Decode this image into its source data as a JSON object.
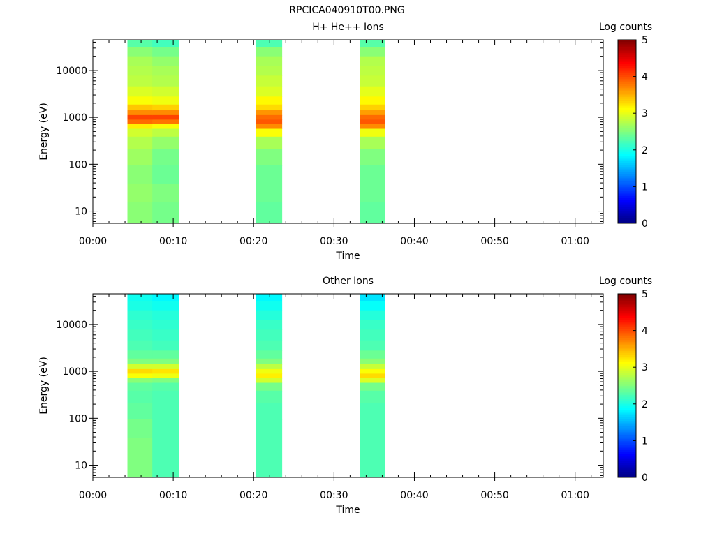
{
  "figure_title": "RPCICA040910T00.PNG",
  "chart_data": [
    {
      "type": "heatmap",
      "title": "H+ He++ Ions",
      "xlabel": "Time",
      "ylabel": "Energy (eV)",
      "y_scale": "log",
      "xlim_minutes": [
        0,
        63.5
      ],
      "ylim": [
        5.5,
        45000
      ],
      "x_tick_values": [
        0,
        10,
        20,
        30,
        40,
        50,
        60
      ],
      "x_tick_labels": [
        "00:00",
        "00:10",
        "00:20",
        "00:30",
        "00:40",
        "00:50",
        "01:00"
      ],
      "y_tick_values": [
        10,
        100,
        1000,
        10000
      ],
      "y_tick_labels": [
        "10",
        "100",
        "1000",
        "10000"
      ],
      "colorbar": {
        "label": "Log counts",
        "range": [
          0,
          5
        ],
        "tick_values": [
          0,
          1,
          2,
          3,
          4,
          5
        ],
        "tick_labels": [
          "0",
          "1",
          "2",
          "3",
          "4",
          "5"
        ],
        "colormap": "jet"
      },
      "time_intervals_minutes": [
        {
          "start": 4.3,
          "end": 7.4
        },
        {
          "start": 7.4,
          "end": 10.7
        },
        {
          "start": 20.3,
          "end": 23.5
        },
        {
          "start": 33.2,
          "end": 36.3
        }
      ],
      "energy_profiles": [
        [
          {
            "e": 40000,
            "v": 2.3
          },
          {
            "e": 25000,
            "v": 2.55
          },
          {
            "e": 16000,
            "v": 2.7
          },
          {
            "e": 10000,
            "v": 2.75
          },
          {
            "e": 6000,
            "v": 2.8
          },
          {
            "e": 3500,
            "v": 2.95
          },
          {
            "e": 2200,
            "v": 3.1
          },
          {
            "e": 1600,
            "v": 3.4
          },
          {
            "e": 1250,
            "v": 3.7
          },
          {
            "e": 1000,
            "v": 4.05
          },
          {
            "e": 800,
            "v": 3.85
          },
          {
            "e": 650,
            "v": 3.2
          },
          {
            "e": 500,
            "v": 2.9
          },
          {
            "e": 300,
            "v": 2.75
          },
          {
            "e": 150,
            "v": 2.65
          },
          {
            "e": 60,
            "v": 2.55
          },
          {
            "e": 25,
            "v": 2.6
          },
          {
            "e": 10,
            "v": 2.55
          }
        ],
        [
          {
            "e": 40000,
            "v": 2.2
          },
          {
            "e": 25000,
            "v": 2.45
          },
          {
            "e": 16000,
            "v": 2.6
          },
          {
            "e": 10000,
            "v": 2.7
          },
          {
            "e": 6000,
            "v": 2.75
          },
          {
            "e": 3500,
            "v": 2.9
          },
          {
            "e": 2200,
            "v": 3.05
          },
          {
            "e": 1600,
            "v": 3.35
          },
          {
            "e": 1250,
            "v": 3.7
          },
          {
            "e": 1000,
            "v": 4.05
          },
          {
            "e": 800,
            "v": 3.8
          },
          {
            "e": 650,
            "v": 3.1
          },
          {
            "e": 500,
            "v": 2.8
          },
          {
            "e": 300,
            "v": 2.6
          },
          {
            "e": 150,
            "v": 2.45
          },
          {
            "e": 60,
            "v": 2.4
          },
          {
            "e": 25,
            "v": 2.5
          },
          {
            "e": 10,
            "v": 2.45
          }
        ],
        [
          {
            "e": 40000,
            "v": 2.25
          },
          {
            "e": 25000,
            "v": 2.55
          },
          {
            "e": 16000,
            "v": 2.7
          },
          {
            "e": 10000,
            "v": 2.75
          },
          {
            "e": 6000,
            "v": 2.85
          },
          {
            "e": 3500,
            "v": 2.95
          },
          {
            "e": 2200,
            "v": 3.15
          },
          {
            "e": 1600,
            "v": 3.3
          },
          {
            "e": 1250,
            "v": 3.65
          },
          {
            "e": 1000,
            "v": 3.85
          },
          {
            "e": 800,
            "v": 3.95
          },
          {
            "e": 650,
            "v": 3.7
          },
          {
            "e": 500,
            "v": 3.1
          },
          {
            "e": 300,
            "v": 2.7
          },
          {
            "e": 150,
            "v": 2.5
          },
          {
            "e": 60,
            "v": 2.4
          },
          {
            "e": 25,
            "v": 2.4
          },
          {
            "e": 10,
            "v": 2.35
          }
        ],
        [
          {
            "e": 40000,
            "v": 2.3
          },
          {
            "e": 25000,
            "v": 2.55
          },
          {
            "e": 16000,
            "v": 2.75
          },
          {
            "e": 10000,
            "v": 2.8
          },
          {
            "e": 6000,
            "v": 2.85
          },
          {
            "e": 3500,
            "v": 3.0
          },
          {
            "e": 2200,
            "v": 3.15
          },
          {
            "e": 1600,
            "v": 3.35
          },
          {
            "e": 1250,
            "v": 3.6
          },
          {
            "e": 1000,
            "v": 3.85
          },
          {
            "e": 800,
            "v": 3.95
          },
          {
            "e": 650,
            "v": 3.7
          },
          {
            "e": 500,
            "v": 3.05
          },
          {
            "e": 300,
            "v": 2.7
          },
          {
            "e": 150,
            "v": 2.5
          },
          {
            "e": 60,
            "v": 2.4
          },
          {
            "e": 25,
            "v": 2.4
          },
          {
            "e": 10,
            "v": 2.35
          }
        ]
      ]
    },
    {
      "type": "heatmap",
      "title": "Other Ions",
      "xlabel": "Time",
      "ylabel": "Energy (eV)",
      "y_scale": "log",
      "xlim_minutes": [
        0,
        63.5
      ],
      "ylim": [
        5.5,
        45000
      ],
      "x_tick_values": [
        0,
        10,
        20,
        30,
        40,
        50,
        60
      ],
      "x_tick_labels": [
        "00:00",
        "00:10",
        "00:20",
        "00:30",
        "00:40",
        "00:50",
        "01:00"
      ],
      "y_tick_values": [
        10,
        100,
        1000,
        10000
      ],
      "y_tick_labels": [
        "10",
        "100",
        "1000",
        "10000"
      ],
      "colorbar": {
        "label": "Log counts",
        "range": [
          0,
          5
        ],
        "tick_values": [
          0,
          1,
          2,
          3,
          4,
          5
        ],
        "tick_labels": [
          "0",
          "1",
          "2",
          "3",
          "4",
          "5"
        ],
        "colormap": "jet"
      },
      "time_intervals_minutes": [
        {
          "start": 4.3,
          "end": 7.4
        },
        {
          "start": 7.4,
          "end": 10.7
        },
        {
          "start": 20.3,
          "end": 23.5
        },
        {
          "start": 33.2,
          "end": 36.3
        }
      ],
      "energy_profiles": [
        [
          {
            "e": 40000,
            "v": 1.95
          },
          {
            "e": 25000,
            "v": 2.0
          },
          {
            "e": 16000,
            "v": 2.1
          },
          {
            "e": 10000,
            "v": 2.15
          },
          {
            "e": 6000,
            "v": 2.2
          },
          {
            "e": 3500,
            "v": 2.25
          },
          {
            "e": 2200,
            "v": 2.35
          },
          {
            "e": 1600,
            "v": 2.5
          },
          {
            "e": 1250,
            "v": 2.9
          },
          {
            "e": 1000,
            "v": 3.3
          },
          {
            "e": 800,
            "v": 3.1
          },
          {
            "e": 650,
            "v": 2.55
          },
          {
            "e": 500,
            "v": 2.35
          },
          {
            "e": 300,
            "v": 2.3
          },
          {
            "e": 150,
            "v": 2.35
          },
          {
            "e": 60,
            "v": 2.45
          },
          {
            "e": 25,
            "v": 2.5
          },
          {
            "e": 10,
            "v": 2.5
          }
        ],
        [
          {
            "e": 40000,
            "v": 1.85
          },
          {
            "e": 25000,
            "v": 1.95
          },
          {
            "e": 16000,
            "v": 2.05
          },
          {
            "e": 10000,
            "v": 2.1
          },
          {
            "e": 6000,
            "v": 2.15
          },
          {
            "e": 3500,
            "v": 2.2
          },
          {
            "e": 2200,
            "v": 2.35
          },
          {
            "e": 1600,
            "v": 2.5
          },
          {
            "e": 1250,
            "v": 2.9
          },
          {
            "e": 1000,
            "v": 3.25
          },
          {
            "e": 800,
            "v": 3.05
          },
          {
            "e": 650,
            "v": 2.5
          },
          {
            "e": 500,
            "v": 2.3
          },
          {
            "e": 300,
            "v": 2.25
          },
          {
            "e": 150,
            "v": 2.25
          },
          {
            "e": 60,
            "v": 2.25
          },
          {
            "e": 25,
            "v": 2.25
          },
          {
            "e": 10,
            "v": 2.25
          }
        ],
        [
          {
            "e": 40000,
            "v": 1.85
          },
          {
            "e": 25000,
            "v": 1.95
          },
          {
            "e": 16000,
            "v": 2.05
          },
          {
            "e": 10000,
            "v": 2.15
          },
          {
            "e": 6000,
            "v": 2.2
          },
          {
            "e": 3500,
            "v": 2.25
          },
          {
            "e": 2200,
            "v": 2.35
          },
          {
            "e": 1600,
            "v": 2.5
          },
          {
            "e": 1250,
            "v": 2.8
          },
          {
            "e": 1000,
            "v": 3.05
          },
          {
            "e": 800,
            "v": 3.2
          },
          {
            "e": 650,
            "v": 2.9
          },
          {
            "e": 500,
            "v": 2.45
          },
          {
            "e": 300,
            "v": 2.3
          },
          {
            "e": 150,
            "v": 2.25
          },
          {
            "e": 60,
            "v": 2.25
          },
          {
            "e": 25,
            "v": 2.25
          },
          {
            "e": 10,
            "v": 2.25
          }
        ],
        [
          {
            "e": 40000,
            "v": 1.75
          },
          {
            "e": 25000,
            "v": 1.9
          },
          {
            "e": 16000,
            "v": 2.05
          },
          {
            "e": 10000,
            "v": 2.15
          },
          {
            "e": 6000,
            "v": 2.2
          },
          {
            "e": 3500,
            "v": 2.25
          },
          {
            "e": 2200,
            "v": 2.4
          },
          {
            "e": 1600,
            "v": 2.55
          },
          {
            "e": 1250,
            "v": 2.85
          },
          {
            "e": 1000,
            "v": 3.1
          },
          {
            "e": 800,
            "v": 3.3
          },
          {
            "e": 650,
            "v": 2.95
          },
          {
            "e": 500,
            "v": 2.45
          },
          {
            "e": 300,
            "v": 2.3
          },
          {
            "e": 150,
            "v": 2.25
          },
          {
            "e": 60,
            "v": 2.25
          },
          {
            "e": 25,
            "v": 2.25
          },
          {
            "e": 10,
            "v": 2.25
          }
        ]
      ]
    }
  ]
}
